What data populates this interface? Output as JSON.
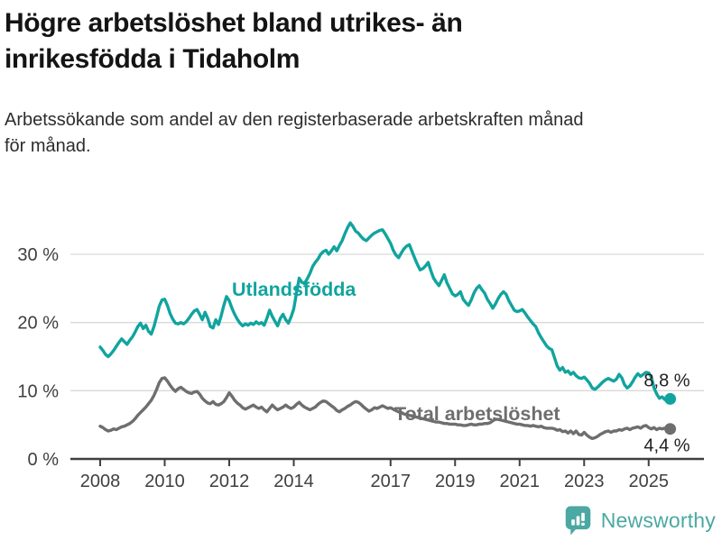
{
  "header": {
    "title_lines": [
      "Högre arbetslöshet bland utrikes- än",
      "inrikesfödda i Tidaholm"
    ],
    "subtitle_lines": [
      "Arbetssökande som andel av den registerbaserade arbetskraften månad",
      "för månad."
    ]
  },
  "footer": {
    "brand": "Newsworthy"
  },
  "colors": {
    "background": "#ffffff",
    "grid": "#d9d9d9",
    "axis": "#3f3f3f",
    "axis_text": "#3f3f3f",
    "annotation_text": "#1f1f1f",
    "brand": "#4ba8a2"
  },
  "chart_data": {
    "type": "line",
    "title": "Högre arbetslöshet bland utrikes- än inrikesfödda i Tidaholm",
    "subtitle": "Arbetssökande som andel av den registerbaserade arbetskraften månad för månad.",
    "x_unit": "month",
    "x_range": [
      "2008-01",
      "2025-09"
    ],
    "y_unit": "%",
    "ylim": [
      0,
      36
    ],
    "grid": true,
    "legend_position": "inline",
    "x_axis": {
      "ticks": [
        {
          "year": 2008,
          "label": "2008"
        },
        {
          "year": 2010,
          "label": "2010"
        },
        {
          "year": 2012,
          "label": "2012"
        },
        {
          "year": 2014,
          "label": "2014"
        },
        {
          "year": 2017,
          "label": "2017"
        },
        {
          "year": 2019,
          "label": "2019"
        },
        {
          "year": 2021,
          "label": "2021"
        },
        {
          "year": 2023,
          "label": "2023"
        },
        {
          "year": 2025,
          "label": "2025"
        }
      ]
    },
    "y_axis": {
      "ticks": [
        {
          "value": 0,
          "label": "0 %"
        },
        {
          "value": 10,
          "label": "10 %"
        },
        {
          "value": 20,
          "label": "20 %"
        },
        {
          "value": 30,
          "label": "30 %"
        }
      ]
    },
    "series": [
      {
        "name": "Utlandsfödda",
        "color": "#11a49e",
        "end_label": "8,8 %",
        "last_value": 8.8,
        "values": [
          16.4,
          15.9,
          15.3,
          15.0,
          15.4,
          15.9,
          16.5,
          17.1,
          17.6,
          17.2,
          16.8,
          17.4,
          17.9,
          18.6,
          19.4,
          19.9,
          19.1,
          19.6,
          18.7,
          18.3,
          19.4,
          20.9,
          22.4,
          23.3,
          23.4,
          22.5,
          21.3,
          20.5,
          19.9,
          19.8,
          20.0,
          19.8,
          20.1,
          20.6,
          21.2,
          21.7,
          21.9,
          21.2,
          20.4,
          21.5,
          20.6,
          19.4,
          19.2,
          20.4,
          19.7,
          21.0,
          22.5,
          23.8,
          23.2,
          22.1,
          21.2,
          20.5,
          19.9,
          19.5,
          19.8,
          19.6,
          19.9,
          19.7,
          20.1,
          19.8,
          20.0,
          19.6,
          20.6,
          21.8,
          20.9,
          20.2,
          19.5,
          20.6,
          21.2,
          20.4,
          19.9,
          20.8,
          22.0,
          24.3,
          26.5,
          25.9,
          25.7,
          26.4,
          27.2,
          28.2,
          28.8,
          29.3,
          30.0,
          30.4,
          30.6,
          30.0,
          30.5,
          31.1,
          30.5,
          31.3,
          32.0,
          33.0,
          33.9,
          34.6,
          34.1,
          33.4,
          33.1,
          32.6,
          32.2,
          32.0,
          32.4,
          32.8,
          33.1,
          33.3,
          33.5,
          33.6,
          33.0,
          32.3,
          31.6,
          30.6,
          29.9,
          29.5,
          30.2,
          30.8,
          31.2,
          31.4,
          30.4,
          29.4,
          28.5,
          27.7,
          27.9,
          28.3,
          28.8,
          27.6,
          26.5,
          25.9,
          25.4,
          26.2,
          27.0,
          25.8,
          25.0,
          24.2,
          23.9,
          24.1,
          24.5,
          23.4,
          22.9,
          22.5,
          23.3,
          24.3,
          25.0,
          25.4,
          24.8,
          24.3,
          23.4,
          22.8,
          22.1,
          22.7,
          23.5,
          24.1,
          24.5,
          24.1,
          23.2,
          22.5,
          21.8,
          21.6,
          21.7,
          21.9,
          21.4,
          20.8,
          20.3,
          19.8,
          19.4,
          18.5,
          17.8,
          17.2,
          16.6,
          16.2,
          16.0,
          14.8,
          13.6,
          13.0,
          13.4,
          12.7,
          12.9,
          12.4,
          12.7,
          12.2,
          11.9,
          11.8,
          12.0,
          11.6,
          11.1,
          10.4,
          10.2,
          10.5,
          10.9,
          11.3,
          11.6,
          11.8,
          11.6,
          11.4,
          11.7,
          12.4,
          11.9,
          10.9,
          10.4,
          10.7,
          11.3,
          12.0,
          12.5,
          12.1,
          12.4,
          12.7,
          12.6,
          12.0,
          10.4,
          9.5,
          8.9,
          9.1,
          8.7,
          8.9,
          8.8
        ]
      },
      {
        "name": "Total arbetslöshet",
        "color": "#6e6e70",
        "end_label": "4,4 %",
        "last_value": 4.4,
        "values": [
          4.8,
          4.6,
          4.3,
          4.1,
          4.2,
          4.4,
          4.3,
          4.5,
          4.7,
          4.8,
          5.0,
          5.2,
          5.5,
          5.9,
          6.4,
          6.8,
          7.2,
          7.6,
          8.1,
          8.6,
          9.3,
          10.2,
          11.2,
          11.8,
          11.9,
          11.4,
          10.8,
          10.3,
          9.9,
          10.3,
          10.5,
          10.2,
          9.9,
          9.7,
          9.6,
          9.8,
          9.9,
          9.5,
          8.9,
          8.5,
          8.2,
          8.1,
          8.4,
          8.0,
          7.9,
          8.1,
          8.4,
          9.0,
          9.7,
          9.2,
          8.6,
          8.2,
          7.9,
          7.5,
          7.3,
          7.5,
          7.7,
          7.9,
          7.6,
          7.4,
          7.6,
          7.2,
          6.9,
          7.4,
          7.9,
          7.5,
          7.2,
          7.4,
          7.6,
          7.9,
          7.6,
          7.4,
          7.6,
          8.0,
          8.3,
          7.9,
          7.6,
          7.4,
          7.2,
          7.4,
          7.6,
          8.0,
          8.3,
          8.5,
          8.4,
          8.1,
          7.8,
          7.5,
          7.1,
          6.9,
          7.2,
          7.4,
          7.7,
          7.9,
          8.2,
          8.4,
          8.3,
          8.0,
          7.6,
          7.3,
          7.0,
          7.2,
          7.5,
          7.4,
          7.6,
          7.8,
          7.6,
          7.4,
          7.5,
          7.3,
          7.1,
          6.9,
          6.8,
          6.6,
          6.5,
          6.4,
          6.3,
          6.2,
          6.1,
          6.0,
          5.9,
          5.8,
          5.7,
          5.6,
          5.5,
          5.4,
          5.4,
          5.3,
          5.2,
          5.2,
          5.1,
          5.1,
          5.1,
          5.0,
          5.0,
          4.9,
          4.9,
          5.0,
          5.1,
          5.0,
          5.0,
          5.1,
          5.1,
          5.2,
          5.2,
          5.3,
          5.6,
          5.8,
          5.8,
          5.7,
          5.6,
          5.5,
          5.4,
          5.3,
          5.2,
          5.1,
          5.1,
          5.0,
          4.9,
          4.9,
          4.8,
          4.9,
          4.8,
          4.7,
          4.8,
          4.6,
          4.5,
          4.5,
          4.5,
          4.4,
          4.2,
          4.3,
          4.0,
          4.1,
          3.8,
          4.1,
          3.7,
          4.1,
          3.6,
          3.5,
          3.9,
          3.5,
          3.2,
          3.0,
          3.1,
          3.3,
          3.6,
          3.8,
          4.0,
          4.1,
          3.9,
          4.1,
          4.1,
          4.3,
          4.2,
          4.4,
          4.5,
          4.3,
          4.5,
          4.6,
          4.7,
          4.5,
          4.8,
          4.9,
          4.6,
          4.4,
          4.6,
          4.3,
          4.5,
          4.4,
          4.5,
          4.3,
          4.4
        ]
      }
    ]
  }
}
